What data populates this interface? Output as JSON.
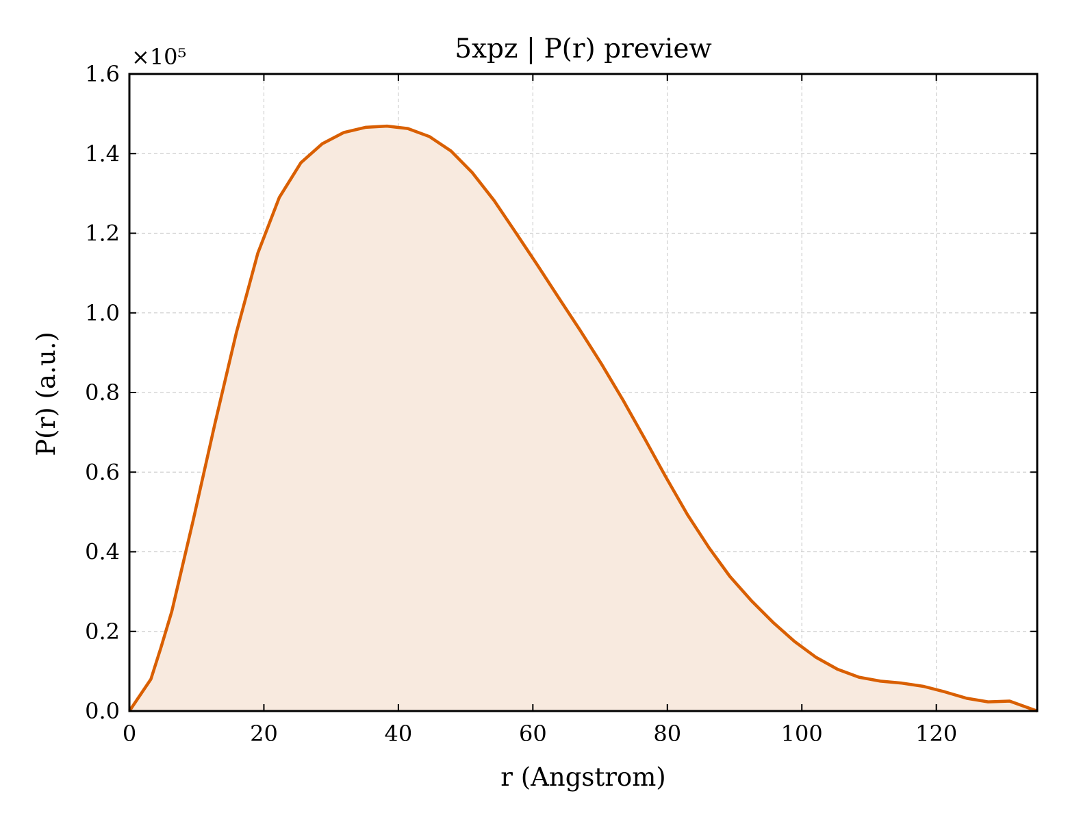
{
  "chart_data": {
    "type": "area",
    "title": "5xpz | P(r) preview",
    "xlabel": "r (Angstrom)",
    "ylabel": "P(r) (a.u.)",
    "y_scale_label": "×10⁵",
    "y_scale_factor": 100000,
    "xlim": [
      0,
      135
    ],
    "ylim": [
      0,
      1.6
    ],
    "x_ticks": [
      0,
      20,
      40,
      60,
      80,
      100,
      120
    ],
    "x_tick_labels": [
      "0",
      "20",
      "40",
      "60",
      "80",
      "100",
      "120"
    ],
    "y_ticks": [
      0.0,
      0.2,
      0.4,
      0.6,
      0.8,
      1.0,
      1.2,
      1.4,
      1.6
    ],
    "y_tick_labels": [
      "0.0",
      "0.2",
      "0.4",
      "0.6",
      "0.8",
      "1.0",
      "1.2",
      "1.4",
      "1.6"
    ],
    "grid": true,
    "line_color": "#d95f02",
    "fill_color": "#f8eadf",
    "series": [
      {
        "x": [
          0,
          3.2,
          4.7,
          6.3,
          9.5,
          12.7,
          15.9,
          19.1,
          22.3,
          25.5,
          28.7,
          31.9,
          35.1,
          38.3,
          41.4,
          44.6,
          47.8,
          51.0,
          54.2,
          57.4,
          60.6,
          63.8,
          67.0,
          70.2,
          73.4,
          76.6,
          79.8,
          83.0,
          86.2,
          89.3,
          92.5,
          95.7,
          98.9,
          102.1,
          105.3,
          108.5,
          111.7,
          114.9,
          118.1,
          121.3,
          124.5,
          127.7,
          130.9,
          135.0
        ],
        "y": [
          0.0,
          0.08,
          0.16,
          0.25,
          0.48,
          0.72,
          0.95,
          1.15,
          1.29,
          1.377,
          1.425,
          1.453,
          1.466,
          1.469,
          1.463,
          1.443,
          1.407,
          1.352,
          1.283,
          1.203,
          1.122,
          1.039,
          0.957,
          0.872,
          0.781,
          0.685,
          0.587,
          0.493,
          0.41,
          0.338,
          0.277,
          0.223,
          0.175,
          0.135,
          0.105,
          0.085,
          0.075,
          0.07,
          0.062,
          0.048,
          0.032,
          0.023,
          0.025,
          0.0
        ]
      }
    ]
  }
}
